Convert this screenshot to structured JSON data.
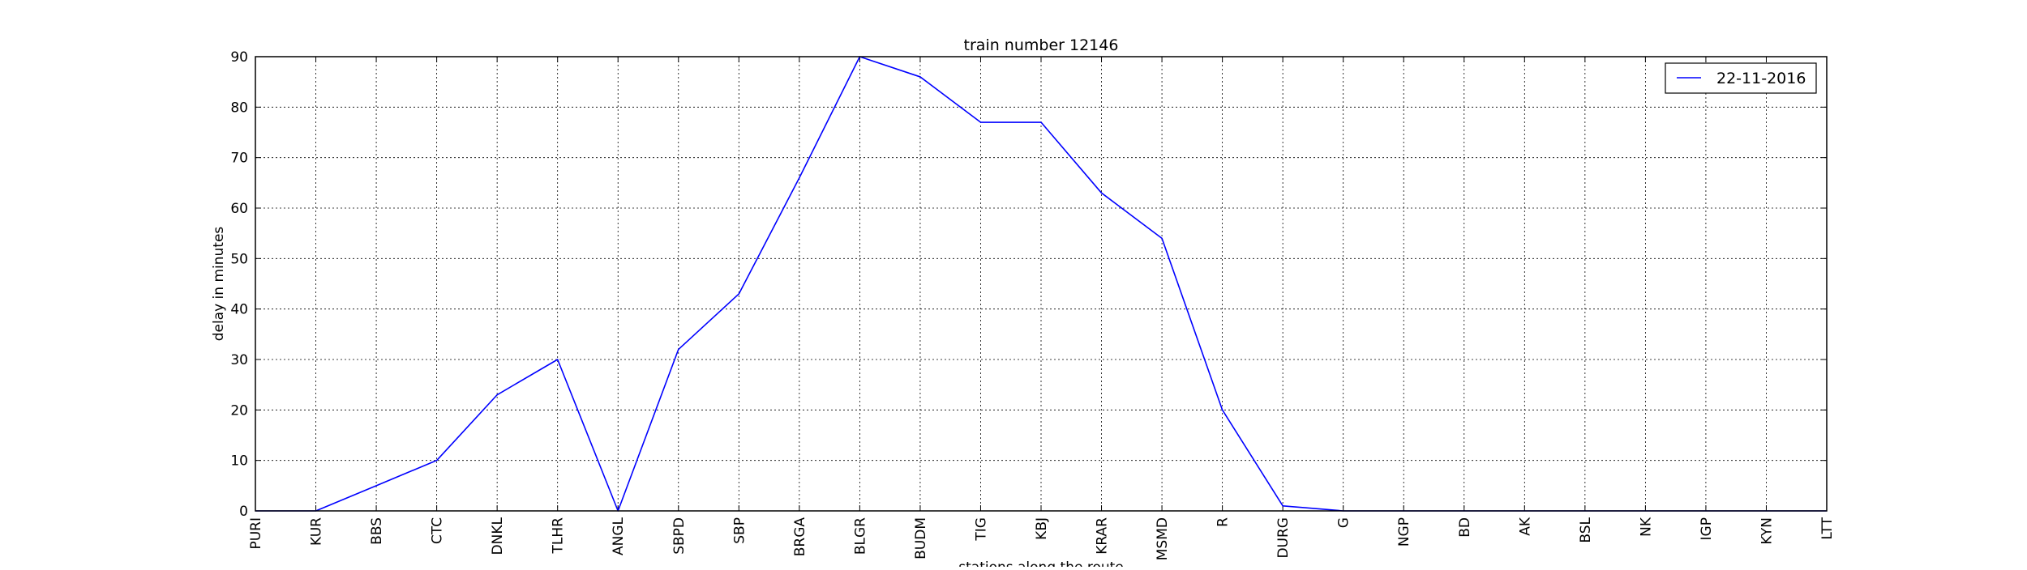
{
  "chart_data": {
    "type": "line",
    "title": "train number 12146",
    "xlabel": "stations along the route",
    "ylabel": "delay in minutes",
    "categories": [
      "PURI",
      "KUR",
      "BBS",
      "CTC",
      "DNKL",
      "TLHR",
      "ANGL",
      "SBPD",
      "SBP",
      "BRGA",
      "BLGR",
      "BUDM",
      "TIG",
      "KBJ",
      "KRAR",
      "MSMD",
      "R",
      "DURG",
      "G",
      "NGP",
      "BD",
      "AK",
      "BSL",
      "NK",
      "IGP",
      "KYN",
      "LTT"
    ],
    "series": [
      {
        "name": "22-11-2016",
        "color": "#0000ff",
        "values": [
          0,
          0,
          5,
          10,
          23,
          30,
          0,
          32,
          43,
          66,
          90,
          86,
          77,
          77,
          63,
          54,
          20,
          1,
          0,
          0,
          0,
          0,
          0,
          0,
          0,
          0,
          0
        ]
      }
    ],
    "ylim": [
      0,
      90
    ],
    "yticks": [
      0,
      10,
      20,
      30,
      40,
      50,
      60,
      70,
      80,
      90
    ],
    "grid": true,
    "legend_position": "top-right"
  }
}
